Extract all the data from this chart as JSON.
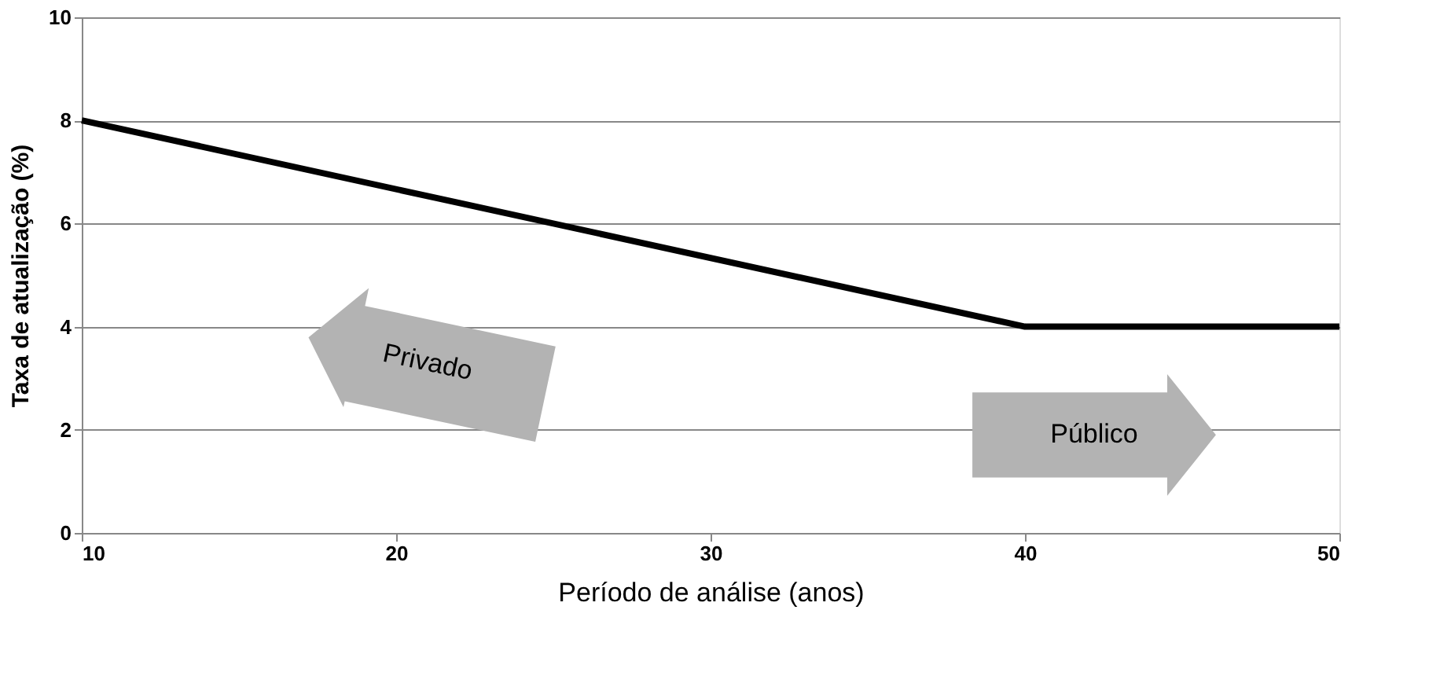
{
  "chart_data": {
    "type": "line",
    "xlabel": "Período de análise (anos)",
    "ylabel": "Taxa de atualização (%)",
    "series": [
      {
        "color": "#000000",
        "x": [
          10,
          40,
          50
        ],
        "values": [
          8,
          4,
          4
        ]
      }
    ],
    "xlim": [
      10,
      50
    ],
    "xticks": [
      10,
      20,
      30,
      40,
      50
    ],
    "ylim": [
      0,
      10
    ],
    "yticks": [
      0,
      2,
      4,
      6,
      8,
      10
    ],
    "grid": "y",
    "marker": "none",
    "line_style": "solid",
    "annotations": [
      "Privado",
      "Público"
    ]
  }
}
